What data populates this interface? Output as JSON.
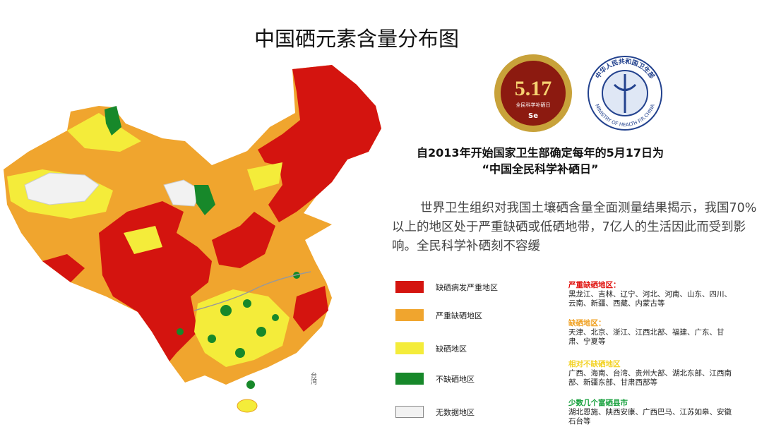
{
  "title": "中国硒元素含量分布图",
  "map": {
    "label": "台湾"
  },
  "badge": {
    "number": "5.17",
    "caption": "全民科学补硒日",
    "symbol": "Se"
  },
  "emblem": {
    "cn": "中华人民共和国卫生部",
    "en": "MINISTRY OF HEALTH P.R.CHINA"
  },
  "headline": [
    "自2013年开始国家卫生部确定每年的5月17日为",
    "“中国全民科学补硒日”"
  ],
  "paragraph": "世界卫生组织对我国土壤硒含量全面测量结果揭示，我国70%以上的地区处于严重缺硒或低硒地带，7亿人的生活因此而受到影响。全民科学补硒刻不容缓",
  "legend": [
    {
      "label": "缺硒病发严重地区",
      "color": "#d4140f"
    },
    {
      "label": "严重缺硒地区",
      "color": "#f0a52e"
    },
    {
      "label": "缺硒地区",
      "color": "#f4ec3a"
    },
    {
      "label": "不缺硒地区",
      "color": "#17882a"
    },
    {
      "label": "无数据地区",
      "color": "#f2f2f2"
    }
  ],
  "notes": [
    {
      "heading": "严重缺硒地区：",
      "color": "#e0120e",
      "text": "黑龙江、吉林、辽宁、河北、河南、山东、四川、云南、新疆、西藏、内蒙古等"
    },
    {
      "heading": "缺硒地区：",
      "color": "#f0a020",
      "text": "天津、北京、浙江、江西北部、福建、广东、甘肃、宁夏等"
    },
    {
      "heading": "相对不缺硒地区",
      "color": "#f3d225",
      "text": "广西、海南、台湾、贵州大部、湖北东部、江西南部、新疆东部、甘肃西部等"
    },
    {
      "heading": "少数几个富硒县市",
      "color": "#16a03c",
      "text": "湖北恩施、陕西安康、广西巴马、江苏如皋、安徽石台等"
    }
  ]
}
